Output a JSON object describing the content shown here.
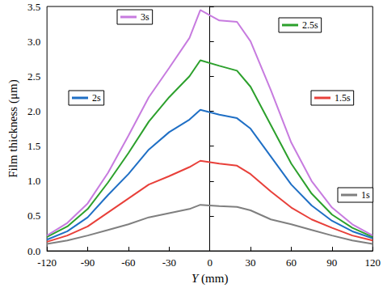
{
  "chart_data": {
    "type": "line",
    "x_label": "Y (mm)",
    "y_label": "Film thickness (μm)",
    "x": [
      -120,
      -105,
      -90,
      -75,
      -60,
      -45,
      -30,
      -15,
      -7,
      7,
      20,
      30,
      45,
      60,
      75,
      90,
      105,
      120
    ],
    "series": [
      {
        "name": "1s",
        "color": "#7f7f7f",
        "values": [
          0.1,
          0.15,
          0.22,
          0.3,
          0.38,
          0.48,
          0.54,
          0.6,
          0.66,
          0.64,
          0.63,
          0.58,
          0.45,
          0.38,
          0.3,
          0.22,
          0.15,
          0.1
        ]
      },
      {
        "name": "1.5s",
        "color": "#e8403a",
        "values": [
          0.13,
          0.22,
          0.35,
          0.55,
          0.75,
          0.95,
          1.07,
          1.2,
          1.29,
          1.25,
          1.22,
          1.1,
          0.85,
          0.62,
          0.45,
          0.33,
          0.22,
          0.15
        ]
      },
      {
        "name": "2s",
        "color": "#1f6fc5",
        "values": [
          0.16,
          0.28,
          0.48,
          0.8,
          1.1,
          1.45,
          1.7,
          1.88,
          2.02,
          1.95,
          1.9,
          1.75,
          1.35,
          0.95,
          0.65,
          0.43,
          0.28,
          0.18
        ]
      },
      {
        "name": "2.5s",
        "color": "#2ca02c",
        "values": [
          0.2,
          0.35,
          0.6,
          0.98,
          1.4,
          1.85,
          2.2,
          2.5,
          2.73,
          2.65,
          2.58,
          2.35,
          1.8,
          1.25,
          0.82,
          0.52,
          0.33,
          0.2
        ]
      },
      {
        "name": "3s",
        "color": "#c77bdf",
        "values": [
          0.22,
          0.4,
          0.68,
          1.12,
          1.65,
          2.2,
          2.62,
          3.05,
          3.45,
          3.3,
          3.28,
          3.0,
          2.3,
          1.55,
          1.0,
          0.62,
          0.38,
          0.22
        ]
      }
    ],
    "xlim": [
      -120,
      120
    ],
    "xticks": [
      -120,
      -90,
      -60,
      -30,
      0,
      30,
      60,
      90,
      120
    ],
    "ylim": [
      0,
      3.5
    ],
    "yticks": [
      {
        "value": 0,
        "label": "0.0"
      },
      0.5,
      {
        "value": 1,
        "label": "1.0"
      },
      1.5,
      {
        "value": 2,
        "label": "2.0"
      },
      2.5,
      {
        "value": 3,
        "label": "3.0"
      },
      3.5
    ],
    "grid": false
  }
}
